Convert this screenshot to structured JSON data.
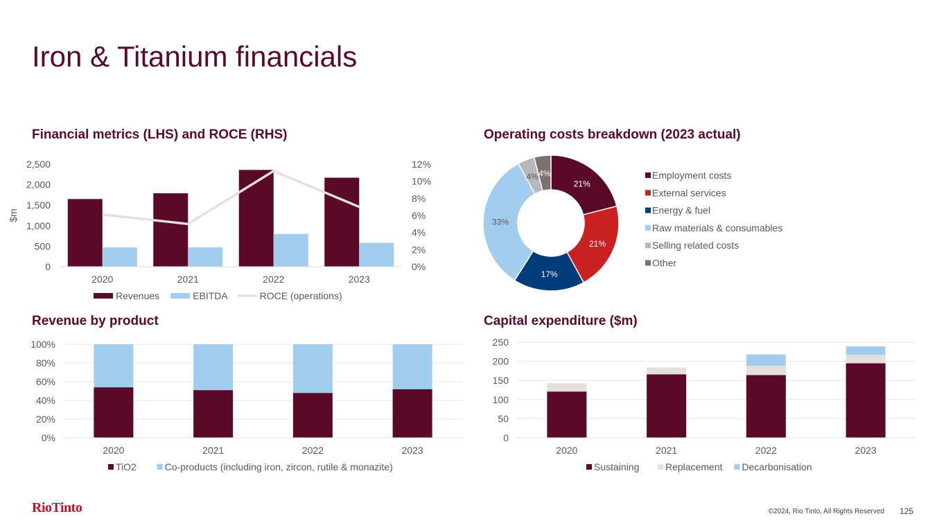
{
  "page": {
    "title": "Iron & Titanium financials",
    "brand": "RioTinto",
    "copyright": "©2024, Rio Tinto, All Rights Reserved",
    "page_number": "125"
  },
  "panels": {
    "financial": "Financial metrics (LHS) and ROCE (RHS)",
    "opex": "Operating costs breakdown (2023 actual)",
    "revenue": "Revenue by product",
    "capex": "Capital expenditure ($m)"
  },
  "chart_data": [
    {
      "id": "financial",
      "type": "bar",
      "title": "Financial metrics (LHS) and ROCE (RHS)",
      "categories": [
        "2020",
        "2021",
        "2022",
        "2023"
      ],
      "ylabel": "$m",
      "ylim": [
        0,
        2500
      ],
      "yticks": [
        "0",
        "500",
        "1,000",
        "1,500",
        "2,000",
        "2,500"
      ],
      "y2lim": [
        0,
        12
      ],
      "y2ticks": [
        "0%",
        "2%",
        "4%",
        "6%",
        "8%",
        "10%",
        "12%"
      ],
      "series": [
        {
          "name": "Revenues",
          "kind": "bar",
          "axis": "left",
          "color": "#5a0a26",
          "values": [
            1650,
            1790,
            2360,
            2170
          ]
        },
        {
          "name": "EBITDA",
          "kind": "bar",
          "axis": "left",
          "color": "#a3cdef",
          "values": [
            470,
            470,
            800,
            580
          ]
        },
        {
          "name": "ROCE (operations)",
          "kind": "line",
          "axis": "right",
          "color": "#e4e1dc",
          "values": [
            6.1,
            5.0,
            11.2,
            7.0
          ]
        }
      ],
      "legend": "bottom",
      "grid": false
    },
    {
      "id": "opex",
      "type": "pie",
      "donut": true,
      "title": "Operating costs breakdown (2023 actual)",
      "labels": [
        "Employment costs",
        "External services",
        "Energy & fuel",
        "Raw materials & consumables",
        "Selling related costs",
        "Other"
      ],
      "values": [
        21,
        21,
        17,
        33,
        4,
        4
      ],
      "data_labels": [
        "21%",
        "21%",
        "17%",
        "33%",
        "4%",
        "4%"
      ],
      "colors": [
        "#5a0a26",
        "#c8211f",
        "#003b7a",
        "#a3cdef",
        "#b7b8bc",
        "#7a726b"
      ],
      "legend": "right"
    },
    {
      "id": "revenue",
      "type": "bar",
      "stacked": true,
      "title": "Revenue by product",
      "categories": [
        "2020",
        "2021",
        "2022",
        "2023"
      ],
      "ylim": [
        0,
        100
      ],
      "yticks": [
        "0%",
        "20%",
        "40%",
        "60%",
        "80%",
        "100%"
      ],
      "series": [
        {
          "name": "TiO2",
          "color": "#5a0a26",
          "values": [
            54,
            51,
            48,
            52
          ]
        },
        {
          "name": "Co-products (including iron, zircon, rutile & monazite)",
          "color": "#a3cdef",
          "values": [
            46,
            49,
            52,
            48
          ]
        }
      ],
      "legend": "bottom",
      "grid": true
    },
    {
      "id": "capex",
      "type": "bar",
      "stacked": true,
      "title": "Capital expenditure ($m)",
      "categories": [
        "2020",
        "2021",
        "2022",
        "2023"
      ],
      "ylim": [
        0,
        250
      ],
      "yticks": [
        "0",
        "50",
        "100",
        "150",
        "200",
        "250"
      ],
      "series": [
        {
          "name": "Sustaining",
          "color": "#5a0a26",
          "values": [
            121,
            166,
            164,
            195
          ]
        },
        {
          "name": "Replacement",
          "color": "#e4e1dc",
          "values": [
            22,
            18,
            24,
            22
          ]
        },
        {
          "name": "Decarbonisation",
          "color": "#a3cdef",
          "values": [
            0,
            0,
            30,
            22
          ]
        }
      ],
      "legend": "bottom",
      "grid": true
    }
  ]
}
